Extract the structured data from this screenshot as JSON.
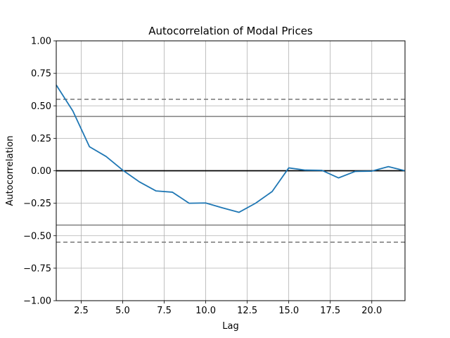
{
  "chart_data": {
    "type": "line",
    "title": "Autocorrelation of Modal Prices",
    "xlabel": "Lag",
    "ylabel": "Autocorrelation",
    "xlim": [
      1,
      22
    ],
    "ylim": [
      -1.0,
      1.0
    ],
    "x_ticks": [
      2.5,
      5.0,
      7.5,
      10.0,
      12.5,
      15.0,
      17.5,
      20.0
    ],
    "x_tick_labels": [
      "2.5",
      "5.0",
      "7.5",
      "10.0",
      "12.5",
      "15.0",
      "17.5",
      "20.0"
    ],
    "y_ticks": [
      1.0,
      0.75,
      0.5,
      0.25,
      0.0,
      -0.25,
      -0.5,
      -0.75,
      -1.0
    ],
    "y_tick_labels": [
      "1.00",
      "0.75",
      "0.50",
      "0.25",
      "0.00",
      "−0.25",
      "−0.50",
      "−0.75",
      "−1.00"
    ],
    "grid": true,
    "series": [
      {
        "color": "#1f77b4",
        "x": [
          1,
          2,
          3,
          4,
          5,
          6,
          7,
          8,
          9,
          10,
          11,
          12,
          13,
          14,
          15,
          16,
          17,
          18,
          19,
          20,
          21,
          22
        ],
        "values": [
          0.66,
          0.46,
          0.185,
          0.11,
          0.005,
          -0.085,
          -0.155,
          -0.165,
          -0.25,
          -0.248,
          -0.285,
          -0.32,
          -0.25,
          -0.16,
          0.022,
          0.005,
          0.003,
          -0.055,
          -0.005,
          -0.003,
          0.032,
          0.0
        ]
      }
    ],
    "reference_lines": [
      {
        "value": 0.0,
        "style": "solid",
        "color": "#000000"
      },
      {
        "value": 0.418,
        "style": "solid",
        "color": "#808080"
      },
      {
        "value": -0.418,
        "style": "solid",
        "color": "#808080"
      },
      {
        "value": 0.55,
        "style": "dashed",
        "color": "#808080"
      },
      {
        "value": -0.55,
        "style": "dashed",
        "color": "#808080"
      }
    ]
  }
}
